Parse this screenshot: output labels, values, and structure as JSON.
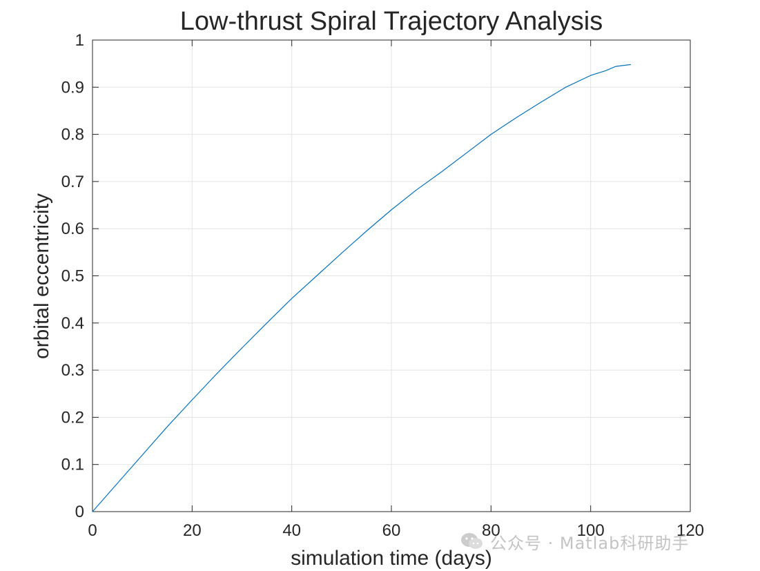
{
  "chart_data": {
    "type": "line",
    "title": "Low-thrust Spiral Trajectory Analysis",
    "xlabel": "simulation time (days)",
    "ylabel": "orbital eccentricity",
    "xlim": [
      0,
      120
    ],
    "ylim": [
      0,
      1
    ],
    "xticks": [
      "0",
      "20",
      "40",
      "60",
      "80",
      "100",
      "120"
    ],
    "yticks": [
      "0",
      "0.1",
      "0.2",
      "0.3",
      "0.4",
      "0.5",
      "0.6",
      "0.7",
      "0.8",
      "0.9",
      "1"
    ],
    "grid": true,
    "series": [
      {
        "color": "#0072BD",
        "x": [
          0,
          5,
          10,
          15,
          20,
          25,
          30,
          35,
          40,
          45,
          50,
          55,
          60,
          65,
          70,
          75,
          80,
          85,
          90,
          95,
          100,
          103,
          105,
          108
        ],
        "y": [
          0,
          0.06,
          0.12,
          0.18,
          0.237,
          0.293,
          0.347,
          0.4,
          0.452,
          0.5,
          0.548,
          0.595,
          0.64,
          0.682,
          0.72,
          0.76,
          0.8,
          0.835,
          0.868,
          0.9,
          0.925,
          0.935,
          0.944,
          0.948
        ]
      }
    ]
  },
  "watermark": {
    "text": "公众号 · Matlab科研助手",
    "icon": "wechat-icon"
  }
}
